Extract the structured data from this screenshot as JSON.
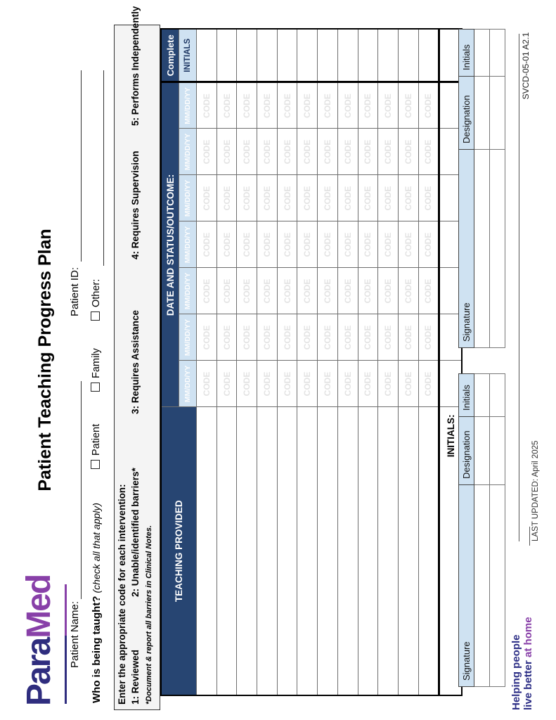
{
  "logo": {
    "part1": "Para",
    "part2": "Med"
  },
  "title": "Patient Teaching Progress Plan",
  "fields": {
    "patient_name_label": "Patient Name:",
    "patient_id_label": "Patient ID:",
    "taught_question": "Who is being taught?",
    "taught_note": "(check all that apply)",
    "checkboxes": [
      "Patient",
      "Family",
      "Other:"
    ]
  },
  "code_box": {
    "heading": "Enter the appropriate code for each intervention:",
    "codes": [
      "1: Reviewed",
      "2: Unable/identified barriers*",
      "3: Requires Assistance",
      "4: Requires Supervision",
      "5: Performs Independently"
    ],
    "footnote": "*Document & report all barriers in Clinical Notes."
  },
  "table": {
    "col_teaching": "TEACHING PROVIDED",
    "col_date_status": "DATE AND STATUS/OUTCOME:",
    "col_complete": "Complete",
    "date_header": "MM/DD/YY",
    "initials_header": "INITIALS",
    "date_columns": 7,
    "body_rows": 12,
    "cell_watermark": "CODE",
    "initials_row_label": "INITIALS:"
  },
  "signatures": {
    "headers": [
      "Signature",
      "Designation",
      "Initials"
    ],
    "blank_rows": 2
  },
  "footer": {
    "tagline_line1": "Helping people",
    "tagline_line2_prefix": "live better ",
    "tagline_line2_accent": "at home",
    "last_updated": "LAST UPDATED: April 2025",
    "form_code": "SVCD-05-01 A2.1"
  },
  "colors": {
    "header_navy": "#274572",
    "subheader_blue": "#cfe2f2",
    "logo_navy": "#2f2d7e",
    "logo_purple": "#8840a8",
    "watermark_gray": "#e3e3e3"
  }
}
